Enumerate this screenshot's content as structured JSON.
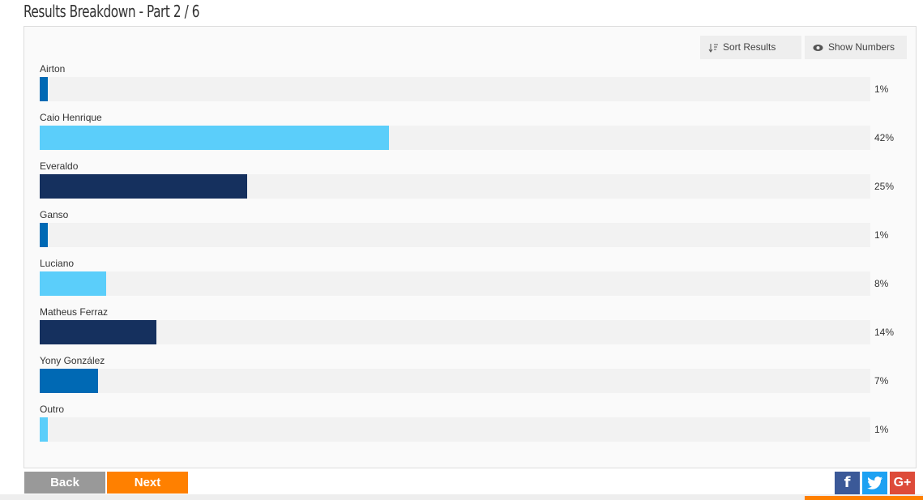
{
  "header": {
    "title": "Results Breakdown - Part 2 / 6"
  },
  "toolbar": {
    "sort": "Sort Results",
    "show": "Show Numbers"
  },
  "chart_data": {
    "type": "bar",
    "orientation": "horizontal",
    "categories": [
      "Airton",
      "Caio Henrique",
      "Everaldo",
      "Ganso",
      "Luciano",
      "Matheus Ferraz",
      "Yony González",
      "Outro"
    ],
    "values": [
      1,
      42,
      25,
      1,
      8,
      14,
      7,
      1
    ],
    "value_labels": [
      "1%",
      "42%",
      "25%",
      "1%",
      "8%",
      "14%",
      "7%",
      "1%"
    ],
    "colors": [
      "#0069b4",
      "#5bcefa",
      "#15305e",
      "#0069b4",
      "#5bcefa",
      "#15305e",
      "#0069b4",
      "#5bcefa"
    ],
    "xlim": [
      0,
      100
    ]
  },
  "navigation": {
    "back": "Back",
    "next": "Next"
  },
  "share": {
    "facebook": "f",
    "google": "G+"
  }
}
